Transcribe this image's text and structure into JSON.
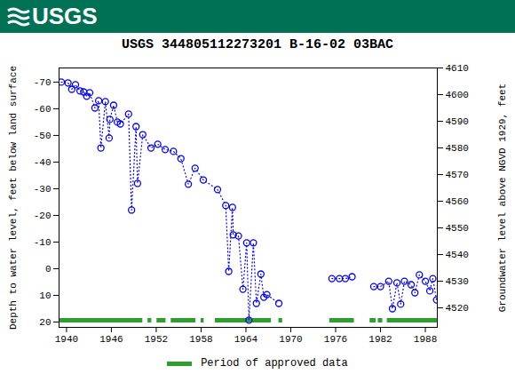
{
  "chart_data": {
    "type": "scatter",
    "logo_text": "USGS",
    "title": "USGS 344805112273201 B-16-02 03BAC",
    "y_label": "Depth to water level, feet below land surface",
    "y2_label": "Groundwater level above NGVD 1929, feet",
    "xlim": [
      1939,
      1989.6
    ],
    "xticks": [
      1940,
      1946,
      1952,
      1958,
      1964,
      1970,
      1976,
      1982,
      1988
    ],
    "ylim": [
      22,
      -75.3
    ],
    "yticks": [
      -70,
      -60,
      -50,
      -40,
      -30,
      -20,
      -10,
      0,
      10,
      20
    ],
    "y2lim": [
      4512.7,
      4610
    ],
    "y2ticks": [
      4520,
      4530,
      4540,
      4550,
      4560,
      4570,
      4580,
      4590,
      4600,
      4610
    ],
    "grid": false,
    "series": [
      {
        "axis": "y",
        "color": "#0000ff",
        "marker": "circle",
        "line_style": "dotted",
        "x": [
          1939.3,
          1940.2,
          1940.7,
          1941.2,
          1941.8,
          1942.3,
          1942.7,
          1943.1,
          1943.8,
          1944.3,
          1944.6,
          1945.2,
          1945.7,
          1945.8,
          1946.3,
          1946.8,
          1947.2,
          1948.3,
          1948.7,
          1949.3,
          1949.5,
          1950.2,
          1951.3,
          1952.2,
          1953.2,
          1954.3,
          1955.3,
          1956.3,
          1957.2,
          1958.3,
          1960.2,
          1961.3,
          1961.7,
          1962.2,
          1962.3,
          1963.0,
          1963.6,
          1964.1,
          1964.4,
          1965.0,
          1965.4,
          1966.0,
          1966.4,
          1966.8,
          1968.4,
          1972.0,
          1975.5,
          1976.5,
          1977.3,
          1978.2,
          1979.6,
          1981.1,
          1982.0,
          1983.1,
          1983.6,
          1984.2,
          1984.7,
          1985.2,
          1986.1,
          1986.6,
          1987.2,
          1988.0,
          1988.6,
          1989.0,
          1989.5
        ],
        "values": [
          -70,
          -69.7,
          -67.3,
          -69,
          -66.7,
          -66.3,
          -64.7,
          -66,
          -60.3,
          -63,
          -45.3,
          -62.7,
          -49,
          -56,
          -61.3,
          -55,
          -54.3,
          -58,
          -22,
          -53.3,
          -32,
          -50.3,
          -45.3,
          -46.7,
          -44.7,
          -44,
          -41.3,
          -31.7,
          -37.7,
          -33.3,
          -29.7,
          -23.7,
          1,
          -23,
          -12.7,
          -12.3,
          7.7,
          -9.7,
          19.3,
          -9.7,
          13,
          2,
          10.7,
          9.7,
          13,
          null,
          3.7,
          3.7,
          3.7,
          3,
          null,
          6.7,
          6.7,
          4.7,
          15,
          5.3,
          13.3,
          4.7,
          6,
          9,
          2.3,
          4.7,
          8.3,
          3.7,
          11.7
        ]
      }
    ],
    "approved_periods": {
      "name": "Period of approved data",
      "color": "#2e9e2e",
      "periods": [
        [
          1939,
          1950.2
        ],
        [
          1950.9,
          1951.4
        ],
        [
          1952.1,
          1953.3
        ],
        [
          1954,
          1957.3
        ],
        [
          1958,
          1958.4
        ],
        [
          1959.9,
          1967.4
        ],
        [
          1968.4,
          1968.9
        ],
        [
          1975.2,
          1978.5
        ],
        [
          1980.6,
          1981.4
        ],
        [
          1981.7,
          1982.3
        ],
        [
          1982.9,
          1989.6
        ]
      ]
    },
    "legend": "bottom"
  }
}
